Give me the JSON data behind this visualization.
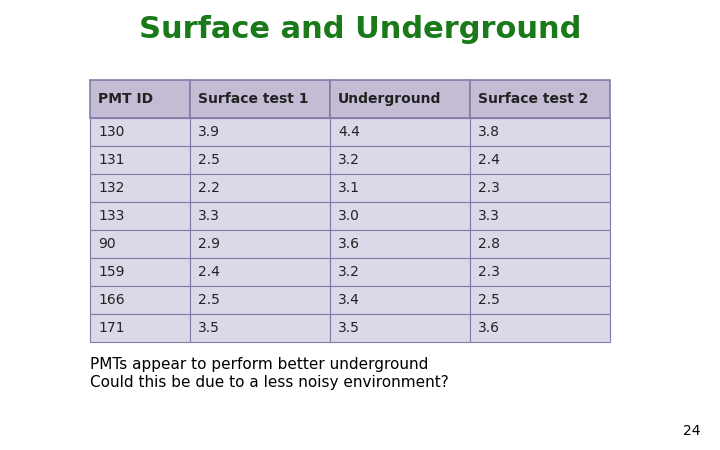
{
  "title": "Surface and Underground",
  "title_color": "#1a7a1a",
  "title_fontsize": 22,
  "headers": [
    "PMT ID",
    "Surface test 1",
    "Underground",
    "Surface test 2"
  ],
  "rows": [
    [
      "130",
      "3.9",
      "4.4",
      "3.8"
    ],
    [
      "131",
      "2.5",
      "3.2",
      "2.4"
    ],
    [
      "132",
      "2.2",
      "3.1",
      "2.3"
    ],
    [
      "133",
      "3.3",
      "3.0",
      "3.3"
    ],
    [
      "90",
      "2.9",
      "3.6",
      "2.8"
    ],
    [
      "159",
      "2.4",
      "3.2",
      "2.3"
    ],
    [
      "166",
      "2.5",
      "3.4",
      "2.5"
    ],
    [
      "171",
      "3.5",
      "3.5",
      "3.6"
    ]
  ],
  "header_bg": "#c4bcd4",
  "row_bg": "#dbd8e8",
  "border_color": "#8878aa",
  "text_color": "#222222",
  "footer_line1": "PMTs appear to perform better underground",
  "footer_line2": "Could this be due to a less noisy environment?",
  "footer_fontsize": 11,
  "page_number": "24",
  "bg_color": "#ffffff",
  "cell_fontsize": 10,
  "header_fontsize": 10
}
